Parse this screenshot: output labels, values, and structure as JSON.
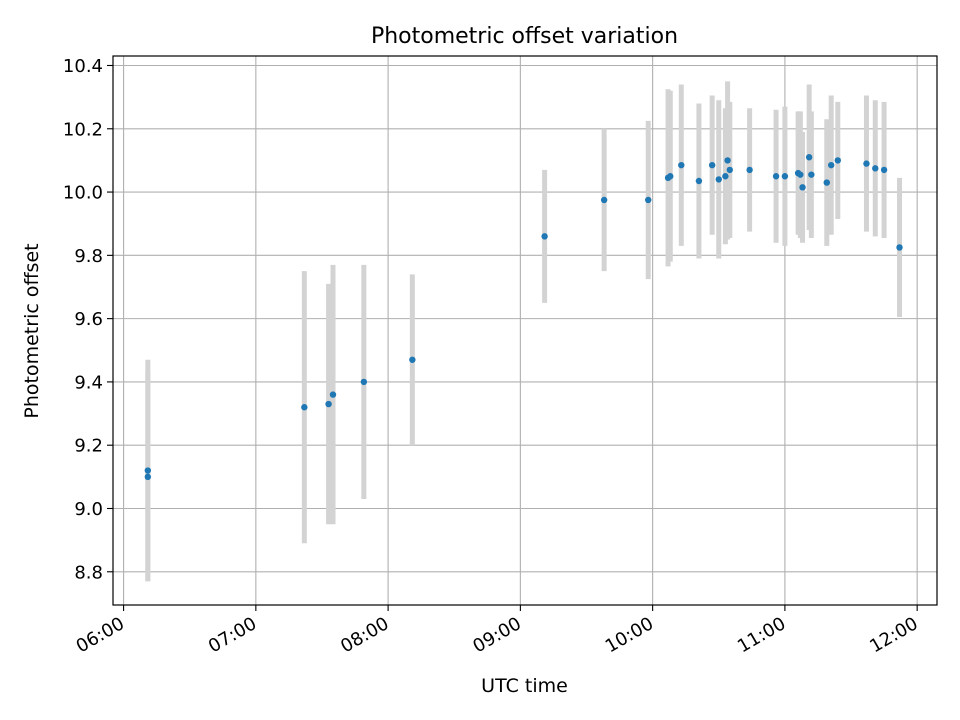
{
  "chart_data": {
    "type": "scatter",
    "title": "Photometric offset variation",
    "xlabel": "UTC time",
    "ylabel": "Photometric offset",
    "x_ticks": [
      "06:00",
      "07:00",
      "08:00",
      "09:00",
      "10:00",
      "11:00",
      "12:00"
    ],
    "y_ticks": [
      "8.8",
      "9.0",
      "9.2",
      "9.4",
      "9.6",
      "9.8",
      "10.0",
      "10.2",
      "10.4"
    ],
    "xlim_hours": [
      5.92,
      12.15
    ],
    "ylim": [
      8.695,
      10.43
    ],
    "grid": true,
    "colors": {
      "point": "#1f77b4",
      "errorbar": "#d3d3d3",
      "grid": "#b0b0b0"
    },
    "series": [
      {
        "points": [
          {
            "t": "06:11",
            "y": 9.12,
            "err": 0.35
          },
          {
            "t": "06:11",
            "y": 9.1,
            "err": 0.33
          },
          {
            "t": "07:22",
            "y": 9.32,
            "err": 0.43
          },
          {
            "t": "07:33",
            "y": 9.33,
            "err": 0.38
          },
          {
            "t": "07:35",
            "y": 9.36,
            "err": 0.41
          },
          {
            "t": "07:49",
            "y": 9.4,
            "err": 0.37
          },
          {
            "t": "08:11",
            "y": 9.47,
            "err": 0.27
          },
          {
            "t": "09:11",
            "y": 9.86,
            "err": 0.21
          },
          {
            "t": "09:38",
            "y": 9.975,
            "err": 0.225
          },
          {
            "t": "09:58",
            "y": 9.975,
            "err": 0.25
          },
          {
            "t": "10:07",
            "y": 10.045,
            "err": 0.28
          },
          {
            "t": "10:08",
            "y": 10.05,
            "err": 0.27
          },
          {
            "t": "10:13",
            "y": 10.085,
            "err": 0.255
          },
          {
            "t": "10:21",
            "y": 10.035,
            "err": 0.245
          },
          {
            "t": "10:27",
            "y": 10.085,
            "err": 0.22
          },
          {
            "t": "10:30",
            "y": 10.04,
            "err": 0.25
          },
          {
            "t": "10:33",
            "y": 10.05,
            "err": 0.215
          },
          {
            "t": "10:34",
            "y": 10.1,
            "err": 0.25
          },
          {
            "t": "10:35",
            "y": 10.07,
            "err": 0.215
          },
          {
            "t": "10:44",
            "y": 10.07,
            "err": 0.195
          },
          {
            "t": "10:56",
            "y": 10.05,
            "err": 0.21
          },
          {
            "t": "11:00",
            "y": 10.05,
            "err": 0.22
          },
          {
            "t": "11:06",
            "y": 10.06,
            "err": 0.195
          },
          {
            "t": "11:07",
            "y": 10.055,
            "err": 0.2
          },
          {
            "t": "11:08",
            "y": 10.015,
            "err": 0.175
          },
          {
            "t": "11:11",
            "y": 10.11,
            "err": 0.23
          },
          {
            "t": "11:12",
            "y": 10.055,
            "err": 0.2
          },
          {
            "t": "11:19",
            "y": 10.03,
            "err": 0.2
          },
          {
            "t": "11:21",
            "y": 10.085,
            "err": 0.22
          },
          {
            "t": "11:24",
            "y": 10.1,
            "err": 0.185
          },
          {
            "t": "11:37",
            "y": 10.09,
            "err": 0.215
          },
          {
            "t": "11:41",
            "y": 10.075,
            "err": 0.215
          },
          {
            "t": "11:45",
            "y": 10.07,
            "err": 0.215
          },
          {
            "t": "11:52",
            "y": 9.825,
            "err": 0.22
          }
        ]
      }
    ]
  }
}
